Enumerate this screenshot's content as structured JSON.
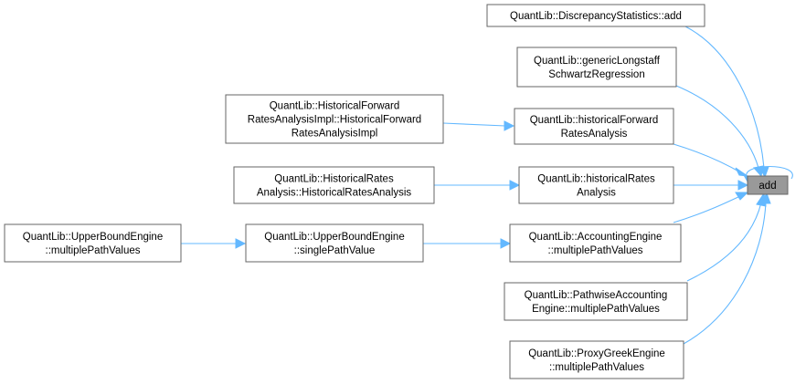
{
  "focus": {
    "label": "add"
  },
  "nodes": {
    "discrepancy": {
      "lines": [
        "QuantLib::DiscrepancyStatistics::add"
      ]
    },
    "longstaff": {
      "lines": [
        "QuantLib::genericLongstaff",
        "SchwartzRegression"
      ]
    },
    "histFwdImpl": {
      "lines": [
        "QuantLib::HistoricalForward",
        "RatesAnalysisImpl::HistoricalForward",
        "RatesAnalysisImpl"
      ]
    },
    "histFwd": {
      "lines": [
        "QuantLib::historicalForward",
        "RatesAnalysis"
      ]
    },
    "histRatesCls": {
      "lines": [
        "QuantLib::HistoricalRates",
        "Analysis::HistoricalRatesAnalysis"
      ]
    },
    "histRates": {
      "lines": [
        "QuantLib::historicalRates",
        "Analysis"
      ]
    },
    "ubeMulti": {
      "lines": [
        "QuantLib::UpperBoundEngine",
        "::multiplePathValues"
      ]
    },
    "ubeSingle": {
      "lines": [
        "QuantLib::UpperBoundEngine",
        "::singlePathValue"
      ]
    },
    "accounting": {
      "lines": [
        "QuantLib::AccountingEngine",
        "::multiplePathValues"
      ]
    },
    "pathwise": {
      "lines": [
        "QuantLib::PathwiseAccounting",
        "Engine::multiplePathValues"
      ]
    },
    "proxyGreek": {
      "lines": [
        "QuantLib::ProxyGreekEngine",
        "::multiplePathValues"
      ]
    }
  },
  "colors": {
    "edge": "#63b8ff",
    "node_border": "#666666",
    "focus_fill": "#999999"
  }
}
